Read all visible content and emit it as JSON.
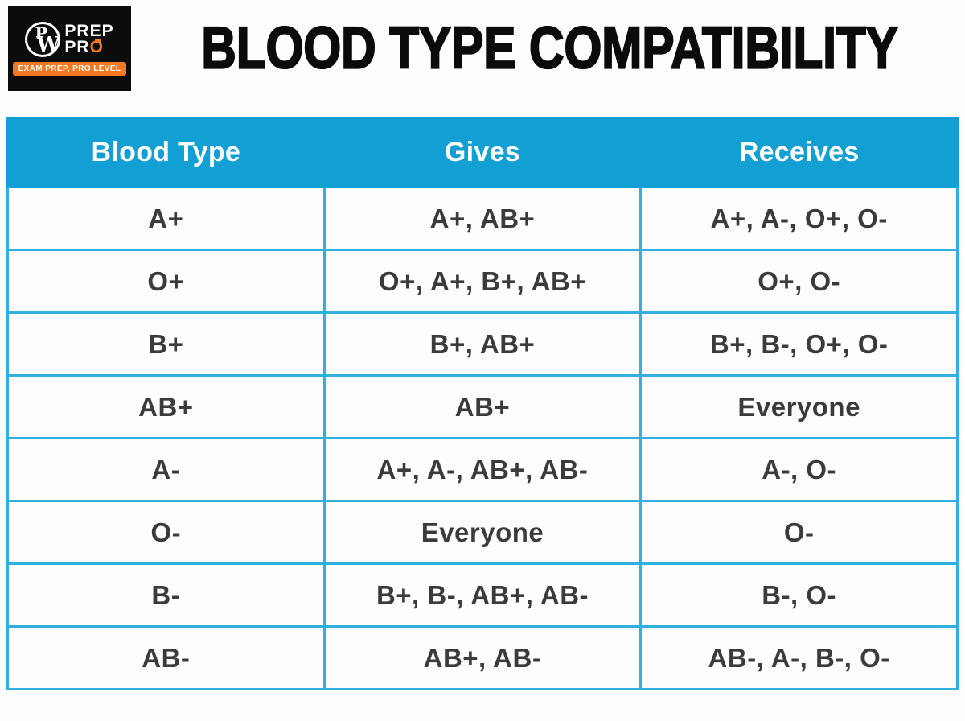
{
  "logo": {
    "monogram_p": "P",
    "monogram_w": "W",
    "line1_prefix": "PR",
    "line1_e": "E",
    "line1_suffix": "P",
    "line2_prefix": "PR",
    "line2_accent": "O",
    "tagline": "EXAM PREP, PRO LEVEL"
  },
  "title": "BLOOD TYPE COMPATIBILITY",
  "chart_data": {
    "type": "table",
    "title": "Blood Type Compatibility",
    "headers": [
      "Blood Type",
      "Gives",
      "Receives"
    ],
    "rows": [
      [
        "A+",
        "A+, AB+",
        "A+, A-, O+, O-"
      ],
      [
        "O+",
        "O+, A+, B+, AB+",
        "O+, O-"
      ],
      [
        "B+",
        "B+, AB+",
        "B+, B-, O+, O-"
      ],
      [
        "AB+",
        "AB+",
        "Everyone"
      ],
      [
        "A-",
        "A+, A-, AB+, AB-",
        "A-, O-"
      ],
      [
        "O-",
        "Everyone",
        "O-"
      ],
      [
        "B-",
        "B+, B-, AB+, AB-",
        "B-, O-"
      ],
      [
        "AB-",
        "AB+, AB-",
        "AB-, A-, B-, O-"
      ]
    ]
  },
  "colors": {
    "header_bg": "#129fd3",
    "border": "#2fb0e1",
    "cell_text": "#3b3b3b",
    "header_text": "#ffffff",
    "logo_bg": "#0c0c0c",
    "logo_orange": "#f4781f",
    "title_text": "#0b0b0b"
  }
}
